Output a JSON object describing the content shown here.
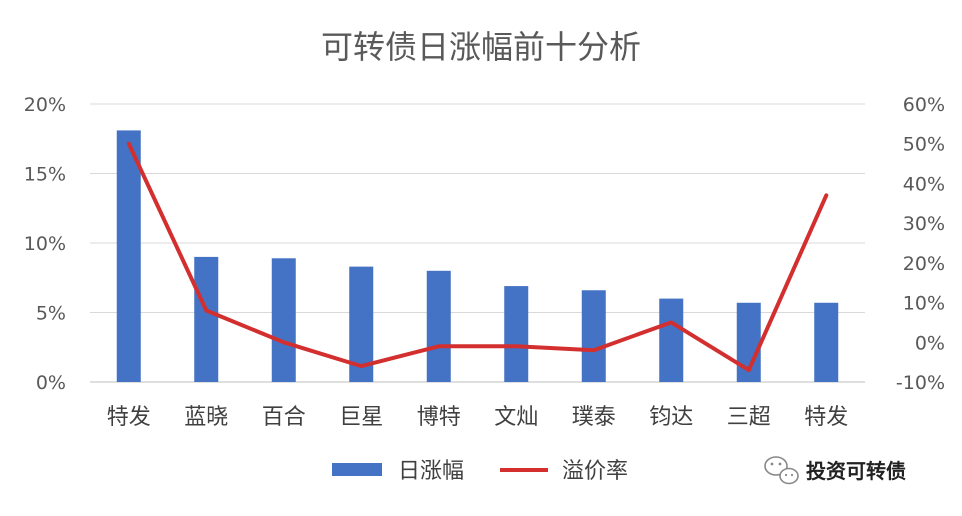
{
  "chart_data": {
    "type": "bar",
    "title": "可转债日涨幅前十分析",
    "categories": [
      "特发",
      "蓝晓",
      "百合",
      "巨星",
      "博特",
      "文灿",
      "璞泰",
      "钧达",
      "三超",
      "特发"
    ],
    "series": [
      {
        "name": "日涨幅",
        "type": "bar",
        "axis": "left",
        "color": "#4472C4",
        "values": [
          18.1,
          9.0,
          8.9,
          8.3,
          8.0,
          6.9,
          6.6,
          6.0,
          5.7,
          5.7
        ]
      },
      {
        "name": "溢价率",
        "type": "line",
        "axis": "right",
        "color": "#D32F2F",
        "values": [
          50,
          8,
          0,
          -6,
          -1,
          -1,
          -2,
          5,
          -7,
          37
        ]
      }
    ],
    "y_left": {
      "min": 0,
      "max": 20,
      "ticks": [
        "0%",
        "5%",
        "10%",
        "15%",
        "20%"
      ]
    },
    "y_right": {
      "min": -10,
      "max": 60,
      "ticks": [
        "-10%",
        "0%",
        "10%",
        "20%",
        "30%",
        "40%",
        "50%",
        "60%"
      ]
    },
    "grid": true,
    "legend_position": "bottom"
  },
  "watermark": {
    "text": "投资可转债",
    "icon": "wechat-icon"
  }
}
